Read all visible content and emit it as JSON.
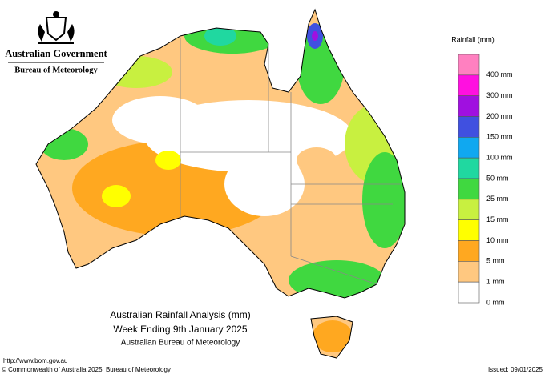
{
  "header": {
    "government": "Australian Government",
    "bureau": "Bureau of Meteorology"
  },
  "legend": {
    "title": "Rainfall (mm)",
    "items": [
      {
        "label": "400 mm",
        "color": "#ff80c0"
      },
      {
        "label": "300 mm",
        "color": "#ff10e0"
      },
      {
        "label": "200 mm",
        "color": "#a010e0"
      },
      {
        "label": "150 mm",
        "color": "#4050e0"
      },
      {
        "label": "100 mm",
        "color": "#10a8f0"
      },
      {
        "label": "50 mm",
        "color": "#20d8a0"
      },
      {
        "label": "25 mm",
        "color": "#40d840"
      },
      {
        "label": "15 mm",
        "color": "#c8f040"
      },
      {
        "label": "10 mm",
        "color": "#ffff00"
      },
      {
        "label": "5 mm",
        "color": "#ffa820"
      },
      {
        "label": "1 mm",
        "color": "#ffc880"
      },
      {
        "label": "0 mm",
        "color": "#ffffff"
      }
    ]
  },
  "map_title": {
    "line1": "Australian Rainfall Analysis (mm)",
    "line2": "Week Ending 9th January 2025",
    "line3": "Australian Bureau of Meteorology"
  },
  "footer": {
    "url": "http://www.bom.gov.au",
    "copyright": "© Commonwealth of Australia 2025, Bureau of Meteorology",
    "issued": "Issued: 09/01/2025"
  }
}
